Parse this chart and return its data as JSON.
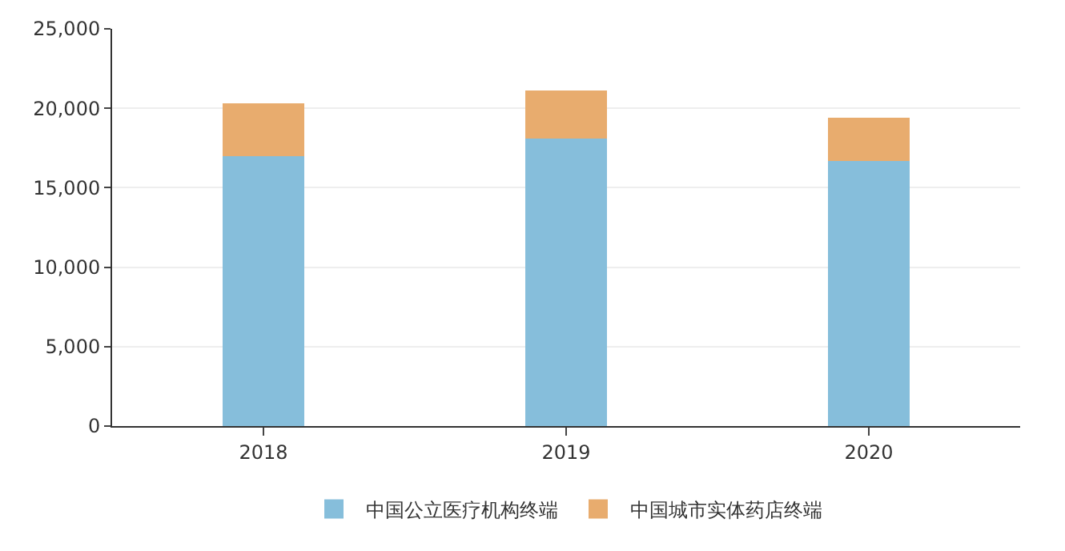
{
  "chart_data": {
    "type": "bar",
    "stacked": true,
    "categories": [
      "2018",
      "2019",
      "2020"
    ],
    "series": [
      {
        "name": "中国公立医疗机构终端",
        "color": "#86bedb",
        "values": [
          17000,
          18100,
          16700
        ]
      },
      {
        "name": "中国城市实体药店终端",
        "color": "#e8ac6e",
        "values": [
          3300,
          3000,
          2700
        ]
      }
    ],
    "ylim": [
      0,
      25000
    ],
    "yticks": [
      {
        "value": 0,
        "label": "0"
      },
      {
        "value": 5000,
        "label": "5,000"
      },
      {
        "value": 10000,
        "label": "10,000"
      },
      {
        "value": 15000,
        "label": "15,000"
      },
      {
        "value": 20000,
        "label": "20,000"
      },
      {
        "value": 25000,
        "label": "25,000"
      }
    ],
    "grid": "y",
    "legend": "bottom"
  }
}
